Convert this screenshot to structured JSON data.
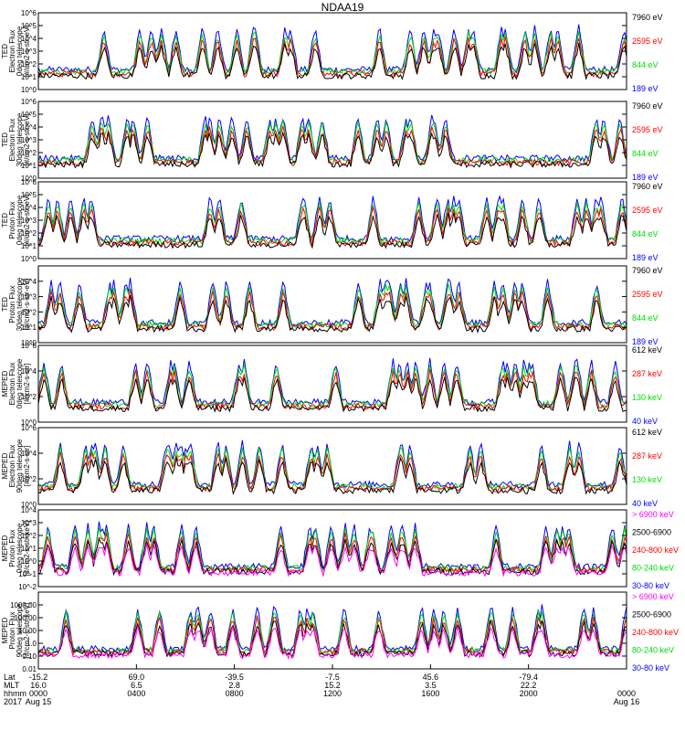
{
  "title": "NDAA19",
  "colors": {
    "blue": "#0000ff",
    "red": "#ff0000",
    "green": "#00dd00",
    "black": "#000000",
    "magenta": "#ff00ff"
  },
  "chart_data": [
    {
      "type": "line",
      "ylabel": [
        "TED",
        "Electron Flux",
        "0deg telescope",
        "[#/cm2-s-str-eV]"
      ],
      "yscale": "log",
      "ylim": [
        1,
        1000000
      ],
      "yticks": [
        {
          "v": 1,
          "t": "10^0"
        },
        {
          "v": 10,
          "t": "10^1"
        },
        {
          "v": 100,
          "t": "10^2"
        },
        {
          "v": 1000,
          "t": "10^3"
        },
        {
          "v": 10000,
          "t": "10^4"
        },
        {
          "v": 100000,
          "t": "10^5"
        },
        {
          "v": 1000000,
          "t": "10^6"
        }
      ],
      "legend": [
        {
          "name": "7960 eV",
          "color": "black"
        },
        {
          "name": "2595 eV",
          "color": "red"
        },
        {
          "name": "844 eV",
          "color": "green"
        },
        {
          "name": "189 eV",
          "color": "blue"
        }
      ]
    },
    {
      "type": "line",
      "ylabel": [
        "TED",
        "Electron Flux",
        "30deg telescope",
        "[#/cm2-s-str-eV]"
      ],
      "yscale": "log",
      "ylim": [
        1,
        1000000
      ],
      "yticks": [
        {
          "v": 1,
          "t": "10^0"
        },
        {
          "v": 10,
          "t": "10^1"
        },
        {
          "v": 100,
          "t": "10^2"
        },
        {
          "v": 1000,
          "t": "10^3"
        },
        {
          "v": 10000,
          "t": "10^4"
        },
        {
          "v": 100000,
          "t": "10^5"
        },
        {
          "v": 1000000,
          "t": "10^6"
        }
      ],
      "legend": [
        {
          "name": "7960 eV",
          "color": "black"
        },
        {
          "name": "2595 eV",
          "color": "red"
        },
        {
          "name": "844 eV",
          "color": "green"
        },
        {
          "name": "189 eV",
          "color": "blue"
        }
      ]
    },
    {
      "type": "line",
      "ylabel": [
        "TED",
        "Proton Flux",
        "0deg telescope",
        "[#/cm2-s-str-eV]"
      ],
      "yscale": "log",
      "ylim": [
        1,
        1000000
      ],
      "yticks": [
        {
          "v": 1,
          "t": "10^0"
        },
        {
          "v": 10,
          "t": "10^1"
        },
        {
          "v": 100,
          "t": "10^2"
        },
        {
          "v": 1000,
          "t": "10^3"
        },
        {
          "v": 10000,
          "t": "10^4"
        },
        {
          "v": 100000,
          "t": "10^5"
        },
        {
          "v": 1000000,
          "t": "10^6"
        }
      ],
      "legend": [
        {
          "name": "7960 eV",
          "color": "black"
        },
        {
          "name": "2595 eV",
          "color": "red"
        },
        {
          "name": "844 eV",
          "color": "green"
        },
        {
          "name": "189 eV",
          "color": "blue"
        }
      ]
    },
    {
      "type": "line",
      "ylabel": [
        "TED",
        "Proton Flux",
        "30deg telescope",
        "[#/cm2-s-str-eV]"
      ],
      "yscale": "log",
      "ylim": [
        1,
        100000
      ],
      "yticks": [
        {
          "v": 1,
          "t": "10^0"
        },
        {
          "v": 10,
          "t": "10^1"
        },
        {
          "v": 100,
          "t": "10^2"
        },
        {
          "v": 1000,
          "t": "10^3"
        },
        {
          "v": 10000,
          "t": "10^4"
        }
      ],
      "legend": [
        {
          "name": "7960 eV",
          "color": "black"
        },
        {
          "name": "2595 eV",
          "color": "red"
        },
        {
          "name": "844 eV",
          "color": "green"
        },
        {
          "name": "189 eV",
          "color": "blue"
        }
      ]
    },
    {
      "type": "line",
      "ylabel": [
        "MEPED",
        "Electron Flux",
        "0deg telescope",
        "[#/cm2-s-str]"
      ],
      "yscale": "log",
      "ylim": [
        1,
        1000000
      ],
      "yticks": [
        {
          "v": 1,
          "t": "10^0"
        },
        {
          "v": 100,
          "t": "10^2"
        },
        {
          "v": 10000,
          "t": "10^4"
        },
        {
          "v": 1000000,
          "t": "10^6"
        }
      ],
      "legend": [
        {
          "name": "612 keV",
          "color": "black"
        },
        {
          "name": "287 keV",
          "color": "red"
        },
        {
          "name": "130 keV",
          "color": "green"
        },
        {
          "name": "40 keV",
          "color": "blue"
        }
      ]
    },
    {
      "type": "line",
      "ylabel": [
        "MEPED",
        "Electron Flux",
        "90deg telescope",
        "[#/cm2-s-str]"
      ],
      "yscale": "log",
      "ylim": [
        1,
        1000000
      ],
      "yticks": [
        {
          "v": 1,
          "t": "10^0"
        },
        {
          "v": 100,
          "t": "10^2"
        },
        {
          "v": 10000,
          "t": "10^4"
        },
        {
          "v": 1000000,
          "t": "10^6"
        }
      ],
      "legend": [
        {
          "name": "612 keV",
          "color": "black"
        },
        {
          "name": "287 keV",
          "color": "red"
        },
        {
          "name": "130 keV",
          "color": "green"
        },
        {
          "name": "40 keV",
          "color": "blue"
        }
      ]
    },
    {
      "type": "line",
      "ylabel": [
        "MEPED",
        "Proton Flux",
        "0deg telescope",
        "[#/cm2-s-str-keV]"
      ],
      "yscale": "log",
      "ylim": [
        0.01,
        10000
      ],
      "yticks": [
        {
          "v": 0.01,
          "t": "10^-2"
        },
        {
          "v": 0.1,
          "t": "10^-1"
        },
        {
          "v": 1,
          "t": "10^0"
        },
        {
          "v": 10,
          "t": "10^1"
        },
        {
          "v": 100,
          "t": "10^2"
        },
        {
          "v": 1000,
          "t": "10^3"
        },
        {
          "v": 10000,
          "t": "10^4"
        }
      ],
      "legend": [
        {
          "name": "> 6900 keV",
          "color": "magenta"
        },
        {
          "name": "2500-6900",
          "color": "black"
        },
        {
          "name": "240-800 keV",
          "color": "red"
        },
        {
          "name": "80-240 keV",
          "color": "green"
        },
        {
          "name": "30-80 keV",
          "color": "blue"
        }
      ]
    },
    {
      "type": "line",
      "ylabel": [
        "MEPED",
        "Proton Flux",
        "90deg telescope",
        "[#/cm2-s-str-keV]"
      ],
      "yscale": "log",
      "ylim": [
        0.01,
        10000
      ],
      "yticks": [
        {
          "v": 0.01,
          "t": "0.01"
        },
        {
          "v": 0.1,
          "t": "0.10"
        },
        {
          "v": 1,
          "t": "1.0"
        },
        {
          "v": 10,
          "t": "10.00"
        },
        {
          "v": 100,
          "t": "100.00"
        },
        {
          "v": 1000,
          "t": "1000.00"
        }
      ],
      "legend": [
        {
          "name": "> 6900 keV",
          "color": "magenta"
        },
        {
          "name": "2500-6900",
          "color": "black"
        },
        {
          "name": "240-800 keV",
          "color": "red"
        },
        {
          "name": "80-240 keV",
          "color": "green"
        },
        {
          "name": "30-80 keV",
          "color": "blue"
        }
      ]
    }
  ],
  "xaxis": {
    "row_labels": [
      "Lat",
      "MLT",
      "hhmm",
      "2017"
    ],
    "ticks": [
      {
        "frac": 0.0,
        "lat": "-15.2",
        "mlt": "16.0",
        "hhmm": "0000",
        "date": "Aug 15"
      },
      {
        "frac": 0.1667,
        "lat": "69.0",
        "mlt": "6.5",
        "hhmm": "0400",
        "date": ""
      },
      {
        "frac": 0.3333,
        "lat": "-39.5",
        "mlt": "2.8",
        "hhmm": "0800",
        "date": ""
      },
      {
        "frac": 0.5,
        "lat": "-7.5",
        "mlt": "15.2",
        "hhmm": "1200",
        "date": ""
      },
      {
        "frac": 0.6667,
        "lat": "45.6",
        "mlt": "3.5",
        "hhmm": "1600",
        "date": ""
      },
      {
        "frac": 0.8333,
        "lat": "-79.4",
        "mlt": "22.2",
        "hhmm": "2000",
        "date": ""
      },
      {
        "frac": 1.0,
        "lat": "",
        "mlt": "",
        "hhmm": "0000",
        "date": "Aug 16"
      }
    ]
  }
}
